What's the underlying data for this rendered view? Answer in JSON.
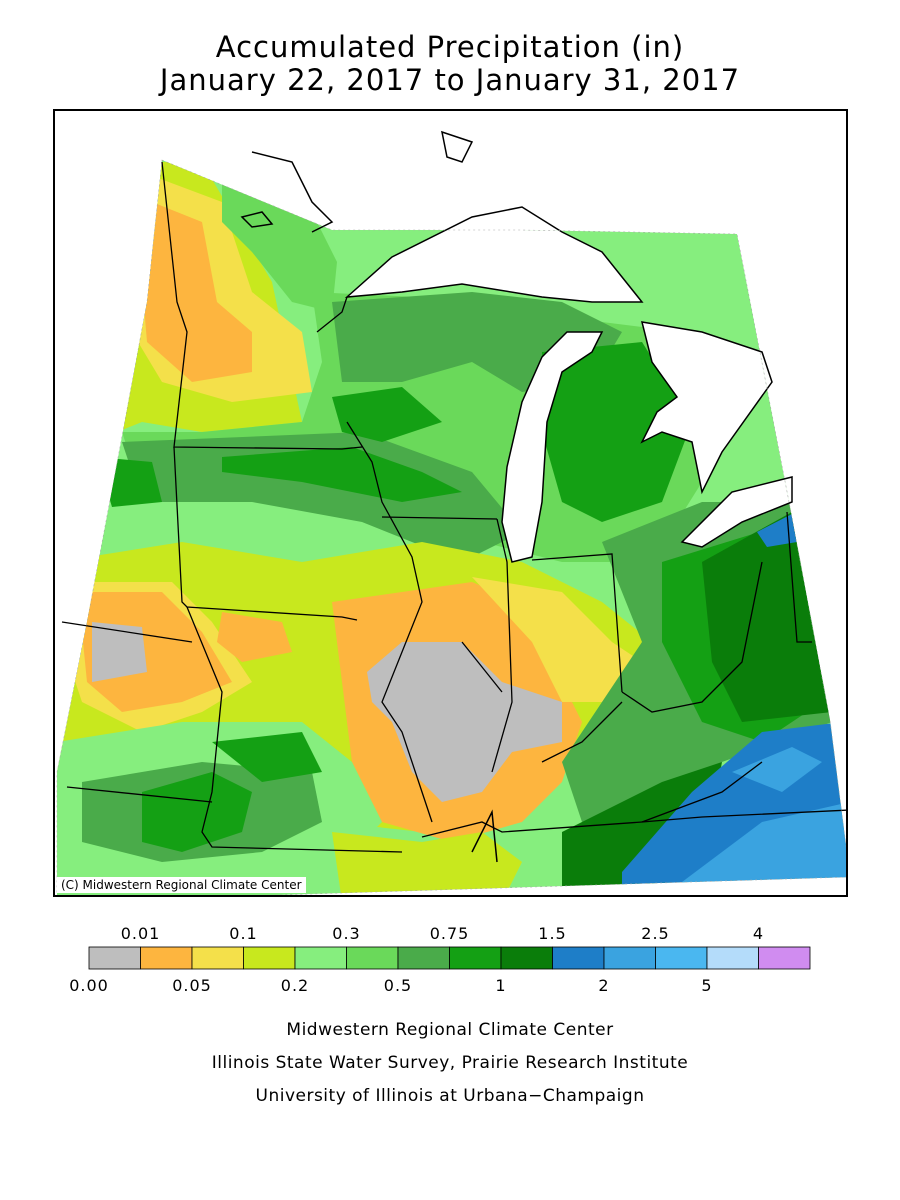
{
  "header": {
    "title_line1": "Accumulated Precipitation (in)",
    "title_line2": "January 22, 2017 to January 31, 2017"
  },
  "map": {
    "copyright": "(C) Midwestern Regional Climate Center",
    "lake_color": "#ffffff",
    "colors": {
      "gray": "#bebebe",
      "orange": "#fdb53f",
      "yellow": "#f4e04a",
      "lime": "#c8e81e",
      "lightgreen": "#86ee7e",
      "green1": "#6ad95a",
      "green2": "#4aab4a",
      "green3": "#14a014",
      "darkgreen": "#0a7d0a",
      "blue1": "#1e7ec8",
      "blue2": "#3aa3e0"
    }
  },
  "legend": {
    "top_labels": [
      "0.01",
      "0.1",
      "0.3",
      "0.75",
      "1.5",
      "2.5",
      "4"
    ],
    "bottom_labels": [
      "0.00",
      "0.05",
      "0.2",
      "0.5",
      "1",
      "2",
      "5"
    ],
    "colors": [
      "#bebebe",
      "#fdb53f",
      "#f4e04a",
      "#c8e81e",
      "#86ee7e",
      "#6ad95a",
      "#4aab4a",
      "#14a014",
      "#0a7d0a",
      "#1e7ec8",
      "#3aa3e0",
      "#4ab7f0",
      "#b4dcfa",
      "#d08cf0"
    ]
  },
  "footer": {
    "line1": "Midwestern Regional Climate Center",
    "line2": "Illinois State Water Survey, Prairie Research Institute",
    "line3": "University of Illinois at Urbana−Champaign"
  }
}
